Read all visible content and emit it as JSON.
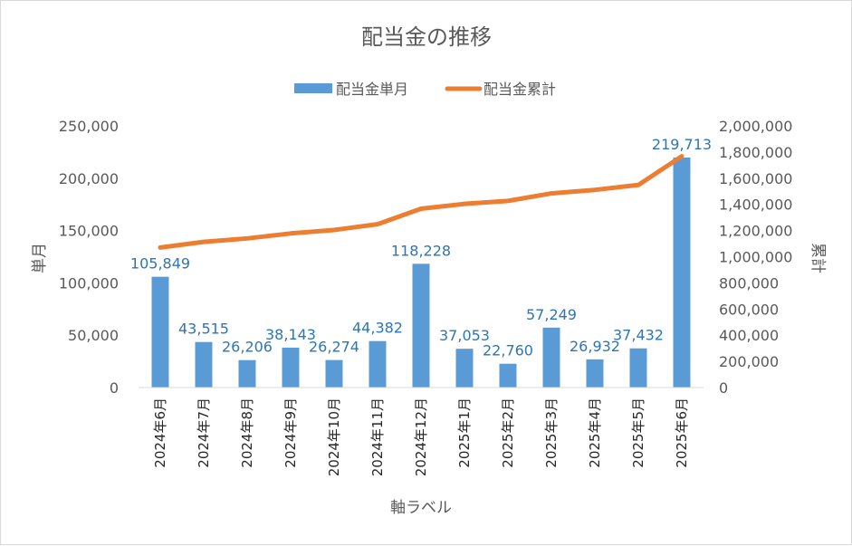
{
  "chart_data": {
    "type": "bar+line",
    "title": "配当金の推移",
    "xlabel": "軸ラベル",
    "ylabel_left": "単月",
    "ylabel_right": "累計",
    "categories": [
      "2024年6月",
      "2024年7月",
      "2024年8月",
      "2024年9月",
      "2024年10月",
      "2024年11月",
      "2024年12月",
      "2025年1月",
      "2025年2月",
      "2025年3月",
      "2025年4月",
      "2025年5月",
      "2025年6月"
    ],
    "series": [
      {
        "name": "配当金単月",
        "type": "bar",
        "axis": "left",
        "color": "#5b9bd5",
        "values": [
          105849,
          43515,
          26206,
          38143,
          26274,
          44382,
          118228,
          37053,
          22760,
          57249,
          26932,
          37432,
          219713
        ],
        "labels": [
          "105,849",
          "43,515",
          "26,206",
          "38,143",
          "26,274",
          "44,382",
          "118,228",
          "37,053",
          "22,760",
          "57,249",
          "26,932",
          "37,432",
          "219,713"
        ]
      },
      {
        "name": "配当金累計",
        "type": "line",
        "axis": "right",
        "color": "#ed7d31",
        "values": [
          1070000,
          1113515,
          1139721,
          1177864,
          1204138,
          1248520,
          1366748,
          1403801,
          1426561,
          1483810,
          1510742,
          1548174,
          1767887
        ]
      }
    ],
    "ylim_left": [
      0,
      250000
    ],
    "ylim_right": [
      0,
      2000000
    ],
    "left_ticks": [
      "0",
      "50,000",
      "100,000",
      "150,000",
      "200,000",
      "250,000"
    ],
    "right_ticks": [
      "0",
      "200,000",
      "400,000",
      "600,000",
      "800,000",
      "1,000,000",
      "1,200,000",
      "1,400,000",
      "1,600,000",
      "1,800,000",
      "2,000,000"
    ],
    "legend": "top"
  }
}
